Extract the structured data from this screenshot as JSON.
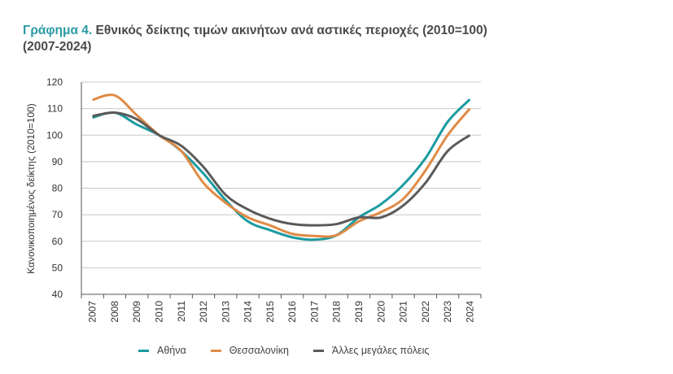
{
  "title": {
    "lead": "Γράφημα 4.",
    "text": " Εθνικός δείκτης τιμών ακινήτων ανά αστικές περιοχές (2010=100) (2007-2024)"
  },
  "chart_data": {
    "type": "line",
    "title": "Εθνικός δείκτης τιμών ακινήτων ανά αστικές περιοχές (2010=100) (2007-2024)",
    "xlabel": "",
    "ylabel": "Κανονικοποιημένος δείκτης (2010=100)",
    "ylim": [
      40,
      120
    ],
    "yticks": [
      40,
      50,
      60,
      70,
      80,
      90,
      100,
      110,
      120
    ],
    "grid": "horizontal",
    "legend_position": "bottom",
    "categories": [
      "2007",
      "2008",
      "2009",
      "2010",
      "2011",
      "2012",
      "2013",
      "2014",
      "2015",
      "2016",
      "2017",
      "2018",
      "2019",
      "2020",
      "2021",
      "2022",
      "2023",
      "2024"
    ],
    "series": [
      {
        "name": "Αθήνα",
        "color": "#1a9ba1",
        "values": [
          106.6,
          108.5,
          104,
          100,
          94,
          85.5,
          75.5,
          67.5,
          64.2,
          61.5,
          60.6,
          62.3,
          69,
          74,
          81.3,
          91.3,
          105,
          113.5
        ]
      },
      {
        "name": "Θεσσαλονίκη",
        "color": "#e08a45",
        "values": [
          113.3,
          115,
          107.5,
          100,
          94,
          82,
          74.5,
          69,
          66,
          62.8,
          62,
          62.3,
          67.5,
          71,
          76,
          86.7,
          100,
          110
        ]
      },
      {
        "name": "Άλλες μεγάλες πόλεις",
        "color": "#5a5a5a",
        "values": [
          107.2,
          108.5,
          106,
          100,
          96,
          88,
          77.5,
          72,
          68.5,
          66.5,
          66,
          66.5,
          69,
          69,
          73.5,
          82,
          94,
          100
        ]
      }
    ]
  },
  "legend": {
    "items": [
      {
        "label": "Αθήνα",
        "color": "#1a9ba1"
      },
      {
        "label": "Θεσσαλονίκη",
        "color": "#e08a45"
      },
      {
        "label": "Άλλες μεγάλες πόλεις",
        "color": "#5a5a5a"
      }
    ]
  }
}
